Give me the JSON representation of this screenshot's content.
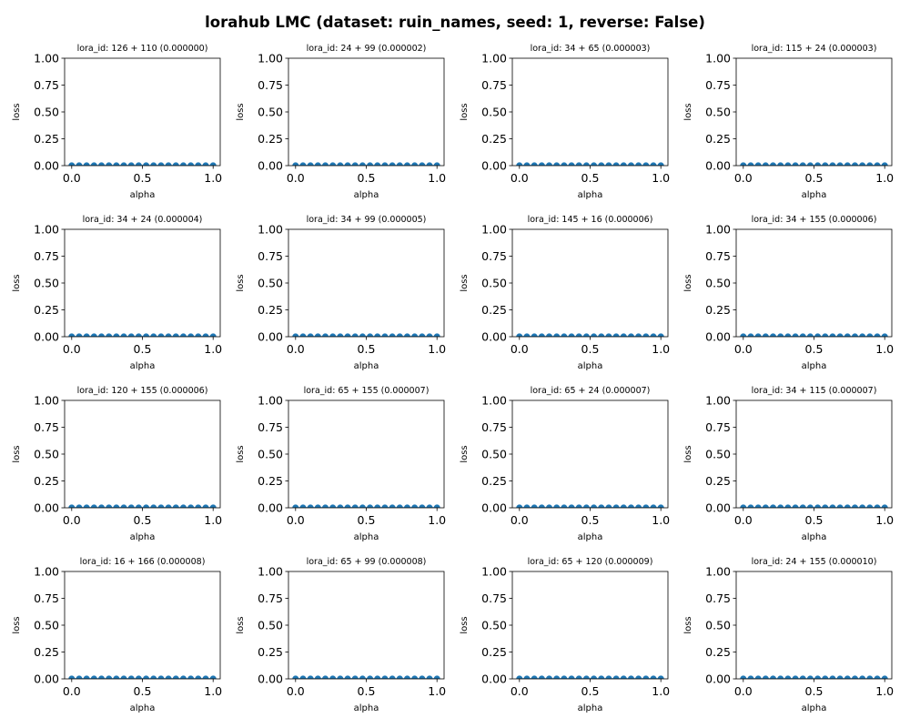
{
  "suptitle": "lorahub LMC (dataset: ruin_names, seed: 1, reverse: False)",
  "colors": {
    "series": "#1f77b4",
    "axis": "#000000",
    "background": "#ffffff"
  },
  "chart_data": [
    {
      "type": "line",
      "title": "lora_id: 126 + 110 (0.000000)",
      "xlabel": "alpha",
      "ylabel": "loss",
      "xlim": [
        0,
        1
      ],
      "ylim": [
        0,
        1
      ],
      "xticks": [
        "0.0",
        "0.5",
        "1.0"
      ],
      "yticks": [
        "0.00",
        "0.25",
        "0.50",
        "0.75",
        "1.00"
      ],
      "grid": false,
      "markers": true,
      "x": [
        0,
        0.0526,
        0.1053,
        0.1579,
        0.2105,
        0.2632,
        0.3158,
        0.3684,
        0.4211,
        0.4737,
        0.5263,
        0.5789,
        0.6316,
        0.6842,
        0.7368,
        0.7895,
        0.8421,
        0.8947,
        0.9474,
        1
      ],
      "values": [
        0,
        0,
        0,
        0,
        0,
        0,
        0,
        0,
        0,
        0,
        0,
        0,
        0,
        0,
        0,
        0,
        0,
        0,
        0,
        0
      ]
    },
    {
      "type": "line",
      "title": "lora_id: 24 + 99 (0.000002)",
      "xlabel": "alpha",
      "ylabel": "loss",
      "xlim": [
        0,
        1
      ],
      "ylim": [
        0,
        1
      ],
      "xticks": [
        "0.0",
        "0.5",
        "1.0"
      ],
      "yticks": [
        "0.00",
        "0.25",
        "0.50",
        "0.75",
        "1.00"
      ],
      "grid": false,
      "markers": true,
      "x": [
        0,
        0.0526,
        0.1053,
        0.1579,
        0.2105,
        0.2632,
        0.3158,
        0.3684,
        0.4211,
        0.4737,
        0.5263,
        0.5789,
        0.6316,
        0.6842,
        0.7368,
        0.7895,
        0.8421,
        0.8947,
        0.9474,
        1
      ],
      "values": [
        0,
        0,
        0,
        0,
        0,
        0,
        0,
        0,
        0,
        0,
        0,
        0,
        0,
        0,
        0,
        0,
        0,
        0,
        0,
        0
      ]
    },
    {
      "type": "line",
      "title": "lora_id: 34 + 65 (0.000003)",
      "xlabel": "alpha",
      "ylabel": "loss",
      "xlim": [
        0,
        1
      ],
      "ylim": [
        0,
        1
      ],
      "xticks": [
        "0.0",
        "0.5",
        "1.0"
      ],
      "yticks": [
        "0.00",
        "0.25",
        "0.50",
        "0.75",
        "1.00"
      ],
      "grid": false,
      "markers": true,
      "x": [
        0,
        0.0526,
        0.1053,
        0.1579,
        0.2105,
        0.2632,
        0.3158,
        0.3684,
        0.4211,
        0.4737,
        0.5263,
        0.5789,
        0.6316,
        0.6842,
        0.7368,
        0.7895,
        0.8421,
        0.8947,
        0.9474,
        1
      ],
      "values": [
        0,
        0,
        0,
        0,
        0,
        0,
        0,
        0,
        0,
        0,
        0,
        0,
        0,
        0,
        0,
        0,
        0,
        0,
        0,
        0
      ]
    },
    {
      "type": "line",
      "title": "lora_id: 115 + 24 (0.000003)",
      "xlabel": "alpha",
      "ylabel": "loss",
      "xlim": [
        0,
        1
      ],
      "ylim": [
        0,
        1
      ],
      "xticks": [
        "0.0",
        "0.5",
        "1.0"
      ],
      "yticks": [
        "0.00",
        "0.25",
        "0.50",
        "0.75",
        "1.00"
      ],
      "grid": false,
      "markers": true,
      "x": [
        0,
        0.0526,
        0.1053,
        0.1579,
        0.2105,
        0.2632,
        0.3158,
        0.3684,
        0.4211,
        0.4737,
        0.5263,
        0.5789,
        0.6316,
        0.6842,
        0.7368,
        0.7895,
        0.8421,
        0.8947,
        0.9474,
        1
      ],
      "values": [
        0,
        0,
        0,
        0,
        0,
        0,
        0,
        0,
        0,
        0,
        0,
        0,
        0,
        0,
        0,
        0,
        0,
        0,
        0,
        0
      ]
    },
    {
      "type": "line",
      "title": "lora_id: 34 + 24 (0.000004)",
      "xlabel": "alpha",
      "ylabel": "loss",
      "xlim": [
        0,
        1
      ],
      "ylim": [
        0,
        1
      ],
      "xticks": [
        "0.0",
        "0.5",
        "1.0"
      ],
      "yticks": [
        "0.00",
        "0.25",
        "0.50",
        "0.75",
        "1.00"
      ],
      "grid": false,
      "markers": true,
      "x": [
        0,
        0.0526,
        0.1053,
        0.1579,
        0.2105,
        0.2632,
        0.3158,
        0.3684,
        0.4211,
        0.4737,
        0.5263,
        0.5789,
        0.6316,
        0.6842,
        0.7368,
        0.7895,
        0.8421,
        0.8947,
        0.9474,
        1
      ],
      "values": [
        0,
        0,
        0,
        0,
        0,
        0,
        0,
        0,
        0,
        0,
        0,
        0,
        0,
        0,
        0,
        0,
        0,
        0,
        0,
        0
      ]
    },
    {
      "type": "line",
      "title": "lora_id: 34 + 99 (0.000005)",
      "xlabel": "alpha",
      "ylabel": "loss",
      "xlim": [
        0,
        1
      ],
      "ylim": [
        0,
        1
      ],
      "xticks": [
        "0.0",
        "0.5",
        "1.0"
      ],
      "yticks": [
        "0.00",
        "0.25",
        "0.50",
        "0.75",
        "1.00"
      ],
      "grid": false,
      "markers": true,
      "x": [
        0,
        0.0526,
        0.1053,
        0.1579,
        0.2105,
        0.2632,
        0.3158,
        0.3684,
        0.4211,
        0.4737,
        0.5263,
        0.5789,
        0.6316,
        0.6842,
        0.7368,
        0.7895,
        0.8421,
        0.8947,
        0.9474,
        1
      ],
      "values": [
        0,
        0,
        0,
        0,
        0,
        0,
        0,
        0,
        0,
        0,
        0,
        0,
        0,
        0,
        0,
        0,
        0,
        0,
        0,
        0
      ]
    },
    {
      "type": "line",
      "title": "lora_id: 145 + 16 (0.000006)",
      "xlabel": "alpha",
      "ylabel": "loss",
      "xlim": [
        0,
        1
      ],
      "ylim": [
        0,
        1
      ],
      "xticks": [
        "0.0",
        "0.5",
        "1.0"
      ],
      "yticks": [
        "0.00",
        "0.25",
        "0.50",
        "0.75",
        "1.00"
      ],
      "grid": false,
      "markers": true,
      "x": [
        0,
        0.0526,
        0.1053,
        0.1579,
        0.2105,
        0.2632,
        0.3158,
        0.3684,
        0.4211,
        0.4737,
        0.5263,
        0.5789,
        0.6316,
        0.6842,
        0.7368,
        0.7895,
        0.8421,
        0.8947,
        0.9474,
        1
      ],
      "values": [
        0,
        0,
        0,
        0,
        0,
        0,
        0,
        0,
        0,
        0,
        0,
        0,
        0,
        0,
        0,
        0,
        0,
        0,
        0,
        0
      ]
    },
    {
      "type": "line",
      "title": "lora_id: 34 + 155 (0.000006)",
      "xlabel": "alpha",
      "ylabel": "loss",
      "xlim": [
        0,
        1
      ],
      "ylim": [
        0,
        1
      ],
      "xticks": [
        "0.0",
        "0.5",
        "1.0"
      ],
      "yticks": [
        "0.00",
        "0.25",
        "0.50",
        "0.75",
        "1.00"
      ],
      "grid": false,
      "markers": true,
      "x": [
        0,
        0.0526,
        0.1053,
        0.1579,
        0.2105,
        0.2632,
        0.3158,
        0.3684,
        0.4211,
        0.4737,
        0.5263,
        0.5789,
        0.6316,
        0.6842,
        0.7368,
        0.7895,
        0.8421,
        0.8947,
        0.9474,
        1
      ],
      "values": [
        0,
        0,
        0,
        0,
        0,
        0,
        0,
        0,
        0,
        0,
        0,
        0,
        0,
        0,
        0,
        0,
        0,
        0,
        0,
        0
      ]
    },
    {
      "type": "line",
      "title": "lora_id: 120 + 155 (0.000006)",
      "xlabel": "alpha",
      "ylabel": "loss",
      "xlim": [
        0,
        1
      ],
      "ylim": [
        0,
        1
      ],
      "xticks": [
        "0.0",
        "0.5",
        "1.0"
      ],
      "yticks": [
        "0.00",
        "0.25",
        "0.50",
        "0.75",
        "1.00"
      ],
      "grid": false,
      "markers": true,
      "x": [
        0,
        0.0526,
        0.1053,
        0.1579,
        0.2105,
        0.2632,
        0.3158,
        0.3684,
        0.4211,
        0.4737,
        0.5263,
        0.5789,
        0.6316,
        0.6842,
        0.7368,
        0.7895,
        0.8421,
        0.8947,
        0.9474,
        1
      ],
      "values": [
        0,
        0,
        0,
        0,
        0,
        0,
        0,
        0,
        0,
        0,
        0,
        0,
        0,
        0,
        0,
        0,
        0,
        0,
        0,
        0
      ]
    },
    {
      "type": "line",
      "title": "lora_id: 65 + 155 (0.000007)",
      "xlabel": "alpha",
      "ylabel": "loss",
      "xlim": [
        0,
        1
      ],
      "ylim": [
        0,
        1
      ],
      "xticks": [
        "0.0",
        "0.5",
        "1.0"
      ],
      "yticks": [
        "0.00",
        "0.25",
        "0.50",
        "0.75",
        "1.00"
      ],
      "grid": false,
      "markers": true,
      "x": [
        0,
        0.0526,
        0.1053,
        0.1579,
        0.2105,
        0.2632,
        0.3158,
        0.3684,
        0.4211,
        0.4737,
        0.5263,
        0.5789,
        0.6316,
        0.6842,
        0.7368,
        0.7895,
        0.8421,
        0.8947,
        0.9474,
        1
      ],
      "values": [
        0,
        0,
        0,
        0,
        0,
        0,
        0,
        0,
        0,
        0,
        0,
        0,
        0,
        0,
        0,
        0,
        0,
        0,
        0,
        0
      ]
    },
    {
      "type": "line",
      "title": "lora_id: 65 + 24 (0.000007)",
      "xlabel": "alpha",
      "ylabel": "loss",
      "xlim": [
        0,
        1
      ],
      "ylim": [
        0,
        1
      ],
      "xticks": [
        "0.0",
        "0.5",
        "1.0"
      ],
      "yticks": [
        "0.00",
        "0.25",
        "0.50",
        "0.75",
        "1.00"
      ],
      "grid": false,
      "markers": true,
      "x": [
        0,
        0.0526,
        0.1053,
        0.1579,
        0.2105,
        0.2632,
        0.3158,
        0.3684,
        0.4211,
        0.4737,
        0.5263,
        0.5789,
        0.6316,
        0.6842,
        0.7368,
        0.7895,
        0.8421,
        0.8947,
        0.9474,
        1
      ],
      "values": [
        0,
        0,
        0,
        0,
        0,
        0,
        0,
        0,
        0,
        0,
        0,
        0,
        0,
        0,
        0,
        0,
        0,
        0,
        0,
        0
      ]
    },
    {
      "type": "line",
      "title": "lora_id: 34 + 115 (0.000007)",
      "xlabel": "alpha",
      "ylabel": "loss",
      "xlim": [
        0,
        1
      ],
      "ylim": [
        0,
        1
      ],
      "xticks": [
        "0.0",
        "0.5",
        "1.0"
      ],
      "yticks": [
        "0.00",
        "0.25",
        "0.50",
        "0.75",
        "1.00"
      ],
      "grid": false,
      "markers": true,
      "x": [
        0,
        0.0526,
        0.1053,
        0.1579,
        0.2105,
        0.2632,
        0.3158,
        0.3684,
        0.4211,
        0.4737,
        0.5263,
        0.5789,
        0.6316,
        0.6842,
        0.7368,
        0.7895,
        0.8421,
        0.8947,
        0.9474,
        1
      ],
      "values": [
        0,
        0,
        0,
        0,
        0,
        0,
        0,
        0,
        0,
        0,
        0,
        0,
        0,
        0,
        0,
        0,
        0,
        0,
        0,
        0
      ]
    },
    {
      "type": "line",
      "title": "lora_id: 16 + 166 (0.000008)",
      "xlabel": "alpha",
      "ylabel": "loss",
      "xlim": [
        0,
        1
      ],
      "ylim": [
        0,
        1
      ],
      "xticks": [
        "0.0",
        "0.5",
        "1.0"
      ],
      "yticks": [
        "0.00",
        "0.25",
        "0.50",
        "0.75",
        "1.00"
      ],
      "grid": false,
      "markers": true,
      "x": [
        0,
        0.0526,
        0.1053,
        0.1579,
        0.2105,
        0.2632,
        0.3158,
        0.3684,
        0.4211,
        0.4737,
        0.5263,
        0.5789,
        0.6316,
        0.6842,
        0.7368,
        0.7895,
        0.8421,
        0.8947,
        0.9474,
        1
      ],
      "values": [
        0,
        0,
        0,
        0,
        0,
        0,
        0,
        0,
        0,
        0,
        0,
        0,
        0,
        0,
        0,
        0,
        0,
        0,
        0,
        0
      ]
    },
    {
      "type": "line",
      "title": "lora_id: 65 + 99 (0.000008)",
      "xlabel": "alpha",
      "ylabel": "loss",
      "xlim": [
        0,
        1
      ],
      "ylim": [
        0,
        1
      ],
      "xticks": [
        "0.0",
        "0.5",
        "1.0"
      ],
      "yticks": [
        "0.00",
        "0.25",
        "0.50",
        "0.75",
        "1.00"
      ],
      "grid": false,
      "markers": true,
      "x": [
        0,
        0.0526,
        0.1053,
        0.1579,
        0.2105,
        0.2632,
        0.3158,
        0.3684,
        0.4211,
        0.4737,
        0.5263,
        0.5789,
        0.6316,
        0.6842,
        0.7368,
        0.7895,
        0.8421,
        0.8947,
        0.9474,
        1
      ],
      "values": [
        0,
        0,
        0,
        0,
        0,
        0,
        0,
        0,
        0,
        0,
        0,
        0,
        0,
        0,
        0,
        0,
        0,
        0,
        0,
        0
      ]
    },
    {
      "type": "line",
      "title": "lora_id: 65 + 120 (0.000009)",
      "xlabel": "alpha",
      "ylabel": "loss",
      "xlim": [
        0,
        1
      ],
      "ylim": [
        0,
        1
      ],
      "xticks": [
        "0.0",
        "0.5",
        "1.0"
      ],
      "yticks": [
        "0.00",
        "0.25",
        "0.50",
        "0.75",
        "1.00"
      ],
      "grid": false,
      "markers": true,
      "x": [
        0,
        0.0526,
        0.1053,
        0.1579,
        0.2105,
        0.2632,
        0.3158,
        0.3684,
        0.4211,
        0.4737,
        0.5263,
        0.5789,
        0.6316,
        0.6842,
        0.7368,
        0.7895,
        0.8421,
        0.8947,
        0.9474,
        1
      ],
      "values": [
        0,
        0,
        0,
        0,
        0,
        0,
        0,
        0,
        0,
        0,
        0,
        0,
        0,
        0,
        0,
        0,
        0,
        0,
        0,
        0
      ]
    },
    {
      "type": "line",
      "title": "lora_id: 24 + 155 (0.000010)",
      "xlabel": "alpha",
      "ylabel": "loss",
      "xlim": [
        0,
        1
      ],
      "ylim": [
        0,
        1
      ],
      "xticks": [
        "0.0",
        "0.5",
        "1.0"
      ],
      "yticks": [
        "0.00",
        "0.25",
        "0.50",
        "0.75",
        "1.00"
      ],
      "grid": false,
      "markers": true,
      "x": [
        0,
        0.0526,
        0.1053,
        0.1579,
        0.2105,
        0.2632,
        0.3158,
        0.3684,
        0.4211,
        0.4737,
        0.5263,
        0.5789,
        0.6316,
        0.6842,
        0.7368,
        0.7895,
        0.8421,
        0.8947,
        0.9474,
        1
      ],
      "values": [
        0,
        0,
        0,
        0,
        0,
        0,
        0,
        0,
        0,
        0,
        0,
        0,
        0,
        0,
        0,
        0,
        0,
        0,
        0,
        0
      ]
    }
  ]
}
